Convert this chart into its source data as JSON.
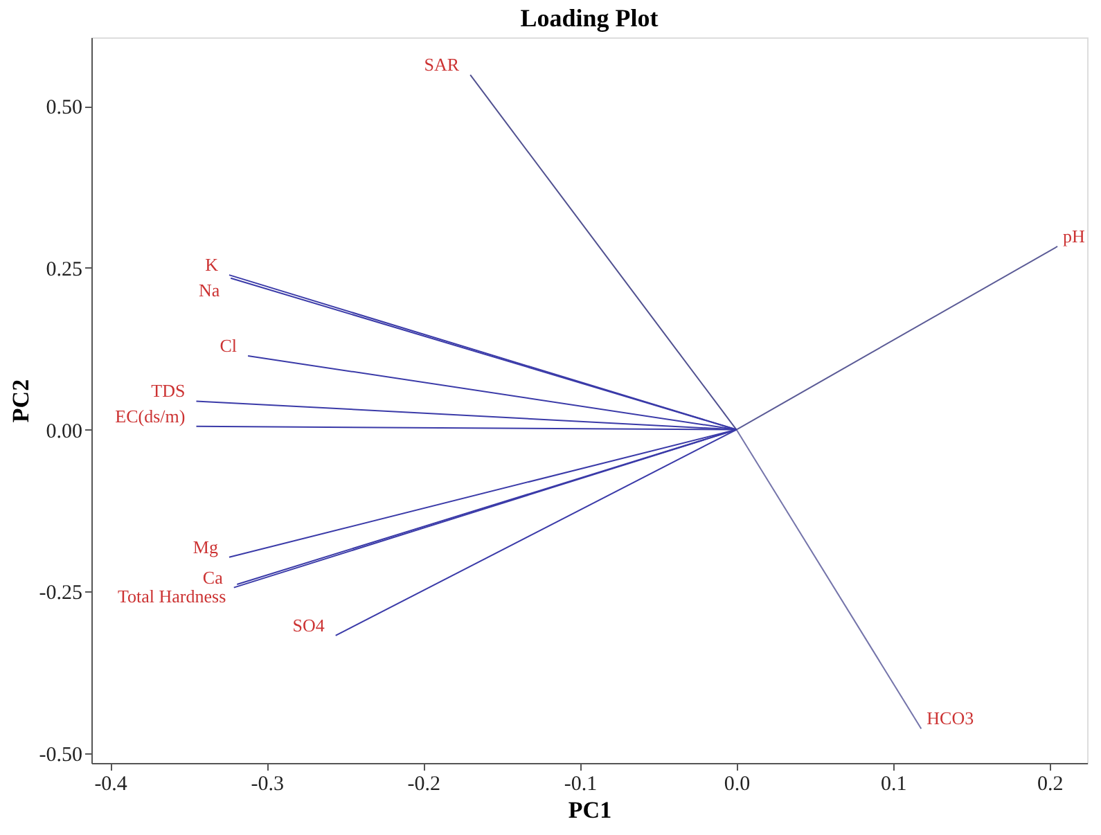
{
  "chart_data": {
    "type": "line",
    "title": "Loading Plot",
    "xlabel": "PC1",
    "ylabel": "PC2",
    "xlim": [
      -0.412,
      0.224
    ],
    "ylim": [
      -0.515,
      0.606
    ],
    "xticks": [
      {
        "value": -0.4,
        "label": "-0.4"
      },
      {
        "value": -0.3,
        "label": "-0.3"
      },
      {
        "value": -0.2,
        "label": "-0.2"
      },
      {
        "value": -0.1,
        "label": "-0.1"
      },
      {
        "value": 0,
        "label": "0.0"
      },
      {
        "value": 0.1,
        "label": "0.1"
      },
      {
        "value": 0.2,
        "label": "0.2"
      }
    ],
    "yticks": [
      {
        "value": -0.5,
        "label": "-0.50"
      },
      {
        "value": -0.25,
        "label": "-0.25"
      },
      {
        "value": 0,
        "label": "0.00"
      },
      {
        "value": 0.25,
        "label": "0.25"
      },
      {
        "value": 0.5,
        "label": "0.50"
      }
    ],
    "grid": false,
    "legend": false,
    "marker": "none",
    "line_style": "solid",
    "series": [
      {
        "name": "SAR",
        "color": "#505090",
        "x": [
          0,
          -0.17
        ],
        "values": [
          0,
          0.548
        ]
      },
      {
        "name": "pH",
        "color": "#5a5a96",
        "x": [
          0,
          0.205
        ],
        "values": [
          0,
          0.283
        ]
      },
      {
        "name": "HCO3",
        "color": "#7474aa",
        "x": [
          0,
          0.118
        ],
        "values": [
          0,
          -0.462
        ]
      },
      {
        "name": "K",
        "color": "#3a3aa8",
        "x": [
          0,
          -0.324
        ],
        "values": [
          0,
          0.239
        ]
      },
      {
        "name": "Na",
        "color": "#3a3aa8",
        "x": [
          0,
          -0.323
        ],
        "values": [
          0,
          0.234
        ]
      },
      {
        "name": "Cl",
        "color": "#3a3aa8",
        "x": [
          0,
          -0.312
        ],
        "values": [
          0,
          0.114
        ]
      },
      {
        "name": "TDS",
        "color": "#3a3aa8",
        "x": [
          0,
          -0.345
        ],
        "values": [
          0,
          0.044
        ]
      },
      {
        "name": "EC(ds/m)",
        "color": "#3a3aa8",
        "x": [
          0,
          -0.345
        ],
        "values": [
          0,
          0.005
        ]
      },
      {
        "name": "Mg",
        "color": "#3a3aa8",
        "x": [
          0,
          -0.324
        ],
        "values": [
          0,
          -0.197
        ]
      },
      {
        "name": "Ca",
        "color": "#3a3aa8",
        "x": [
          0,
          -0.321
        ],
        "values": [
          0,
          -0.244
        ]
      },
      {
        "name": "Total Hardness",
        "color": "#3a3aa8",
        "x": [
          0,
          -0.319
        ],
        "values": [
          0,
          -0.239
        ]
      },
      {
        "name": "SO4",
        "color": "#3a3aa8",
        "x": [
          0,
          -0.256
        ],
        "values": [
          0,
          -0.318
        ]
      }
    ]
  }
}
